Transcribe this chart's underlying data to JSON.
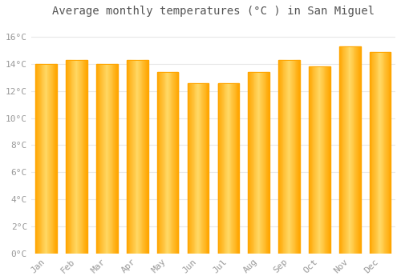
{
  "title": "Average monthly temperatures (°C ) in San Miguel",
  "months": [
    "Jan",
    "Feb",
    "Mar",
    "Apr",
    "May",
    "Jun",
    "Jul",
    "Aug",
    "Sep",
    "Oct",
    "Nov",
    "Dec"
  ],
  "values": [
    14.0,
    14.3,
    14.0,
    14.3,
    13.4,
    12.6,
    12.6,
    13.4,
    14.3,
    13.8,
    15.3,
    14.9
  ],
  "ylim": [
    0,
    17
  ],
  "yticks": [
    0,
    2,
    4,
    6,
    8,
    10,
    12,
    14,
    16
  ],
  "ytick_labels": [
    "0°C",
    "2°C",
    "4°C",
    "6°C",
    "8°C",
    "10°C",
    "12°C",
    "14°C",
    "16°C"
  ],
  "background_color": "#ffffff",
  "grid_color": "#e8e8e8",
  "bar_edge_color": "#FFA500",
  "bar_center_color": "#FFD966",
  "title_fontsize": 10,
  "tick_fontsize": 8,
  "tick_color": "#999999",
  "title_color": "#555555",
  "bar_width": 0.7,
  "num_gradient_steps": 30
}
